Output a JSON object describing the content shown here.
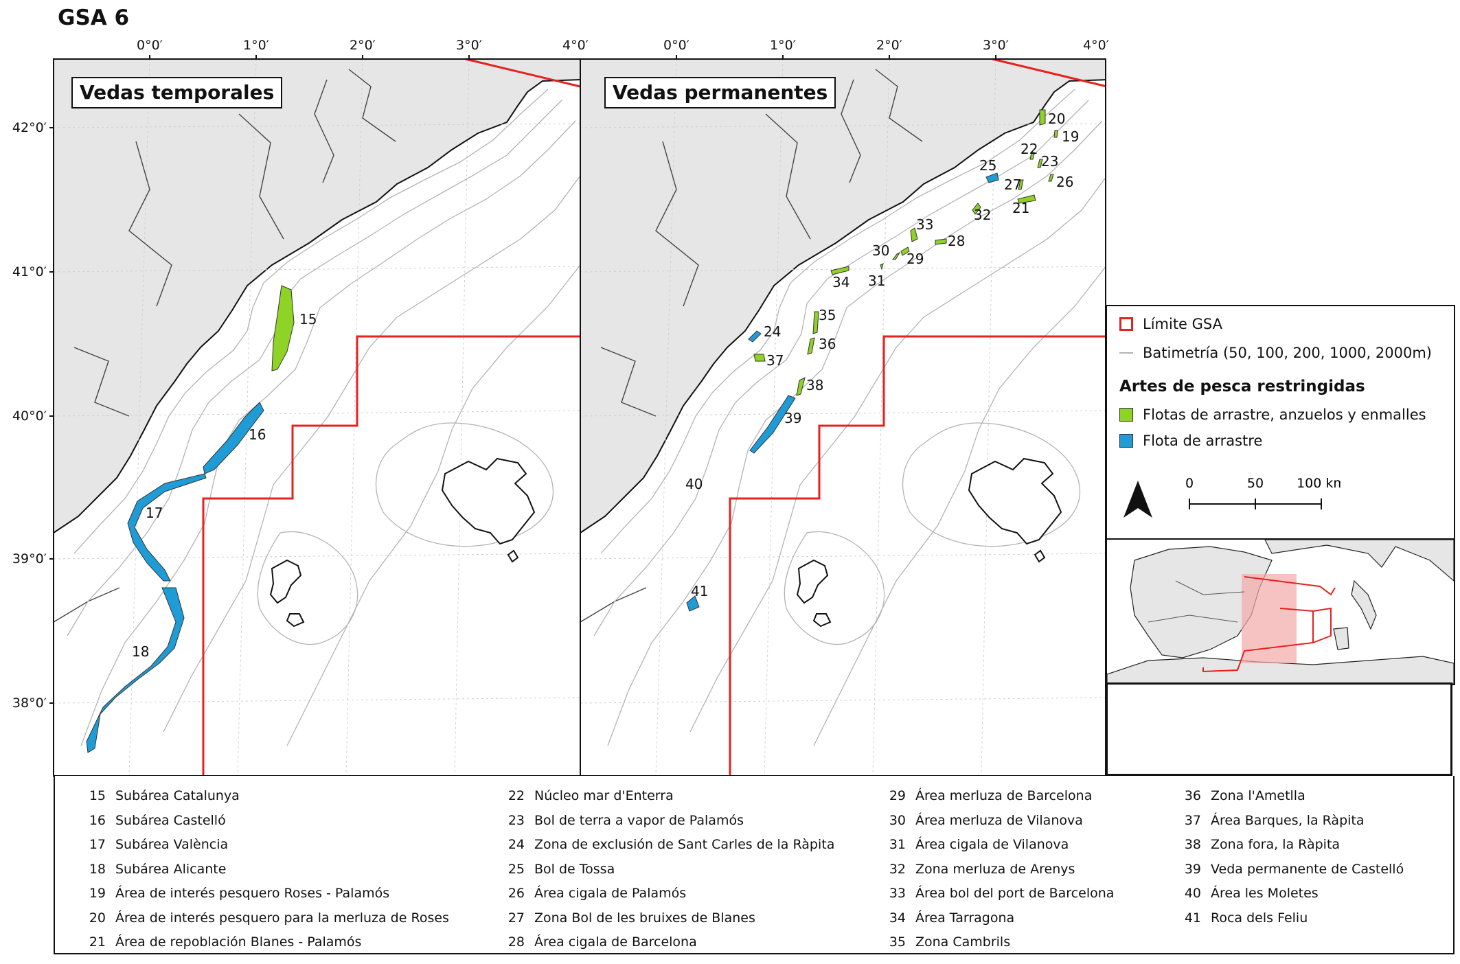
{
  "title": "GSA 6",
  "panels": {
    "left_label": "Vedas temporales",
    "right_label": "Vedas permanentes"
  },
  "longitude_ticks": [
    "0°0′",
    "1°0′",
    "2°0′",
    "3°0′",
    "4°0′"
  ],
  "latitude_ticks": [
    "42°0′",
    "41°0′",
    "40°0′",
    "39°0′",
    "38°0′"
  ],
  "area_numbers": {
    "left": [
      "15",
      "16",
      "17",
      "18"
    ],
    "right": [
      "20",
      "19",
      "22",
      "23",
      "25",
      "26",
      "27",
      "21",
      "32",
      "33",
      "28",
      "30",
      "29",
      "34",
      "31",
      "35",
      "24",
      "36",
      "37",
      "38",
      "39",
      "40",
      "41"
    ]
  },
  "legend": {
    "gsa_limit": "Límite GSA",
    "bathymetry": "Batimetría  (50, 100, 200, 1000, 2000m)",
    "heading": "Artes de pesca restringidas",
    "green_label": "Flotas de arrastre, anzuelos y enmalles",
    "blue_label": "Flota de arrastre",
    "scale_labels": [
      "0",
      "50",
      "100 km"
    ]
  },
  "colors": {
    "land": "#e6e6e6",
    "sea": "#ffffff",
    "gsa_limit": "#e8201e",
    "green_area": "#8fd327",
    "blue_area": "#1f9bd6",
    "bathymetry": "#b3b3b3",
    "inset_highlight": "#f4a8a8"
  },
  "key_columns": [
    [
      {
        "num": "15",
        "name": "Subárea Catalunya"
      },
      {
        "num": "16",
        "name": "Subárea  Castelló"
      },
      {
        "num": "17",
        "name": "Subárea València"
      },
      {
        "num": "18",
        "name": "Subárea Alicante"
      },
      {
        "num": "19",
        "name": "Área de interés pesquero Roses - Palamós"
      },
      {
        "num": "20",
        "name": "Área de interés pesquero para la merluza de Roses"
      },
      {
        "num": "21",
        "name": "Área de repoblación Blanes - Palamós"
      }
    ],
    [
      {
        "num": "22",
        "name": "Núcleo mar d'Enterra"
      },
      {
        "num": "23",
        "name": "Bol de terra a vapor de Palamós"
      },
      {
        "num": "24",
        "name": "Zona de exclusión de Sant Carles de la Ràpita"
      },
      {
        "num": "25",
        "name": "Bol de Tossa"
      },
      {
        "num": "26",
        "name": "Área cigala de Palamós"
      },
      {
        "num": "27",
        "name": "Zona Bol de les bruixes de Blanes"
      },
      {
        "num": "28",
        "name": "Área cigala de Barcelona"
      }
    ],
    [
      {
        "num": "29",
        "name": "Área merluza de Barcelona"
      },
      {
        "num": "30",
        "name": "Área merluza de Vilanova"
      },
      {
        "num": "31",
        "name": "Área cigala de Vilanova"
      },
      {
        "num": "32",
        "name": "Zona merluza de Arenys"
      },
      {
        "num": "33",
        "name": "Área bol del port de Barcelona"
      },
      {
        "num": "34",
        "name": "Área Tarragona"
      },
      {
        "num": "35",
        "name": "Zona Cambrils"
      }
    ],
    [
      {
        "num": "36",
        "name": "Zona l'Ametlla"
      },
      {
        "num": "37",
        "name": "Área Barques, la Ràpita"
      },
      {
        "num": "38",
        "name": "Zona fora, la Ràpita"
      },
      {
        "num": "39",
        "name": "Veda permanente de Castelló"
      },
      {
        "num": "40",
        "name": "Área les Moletes"
      },
      {
        "num": "41",
        "name": "Roca dels Feliu"
      }
    ]
  ]
}
